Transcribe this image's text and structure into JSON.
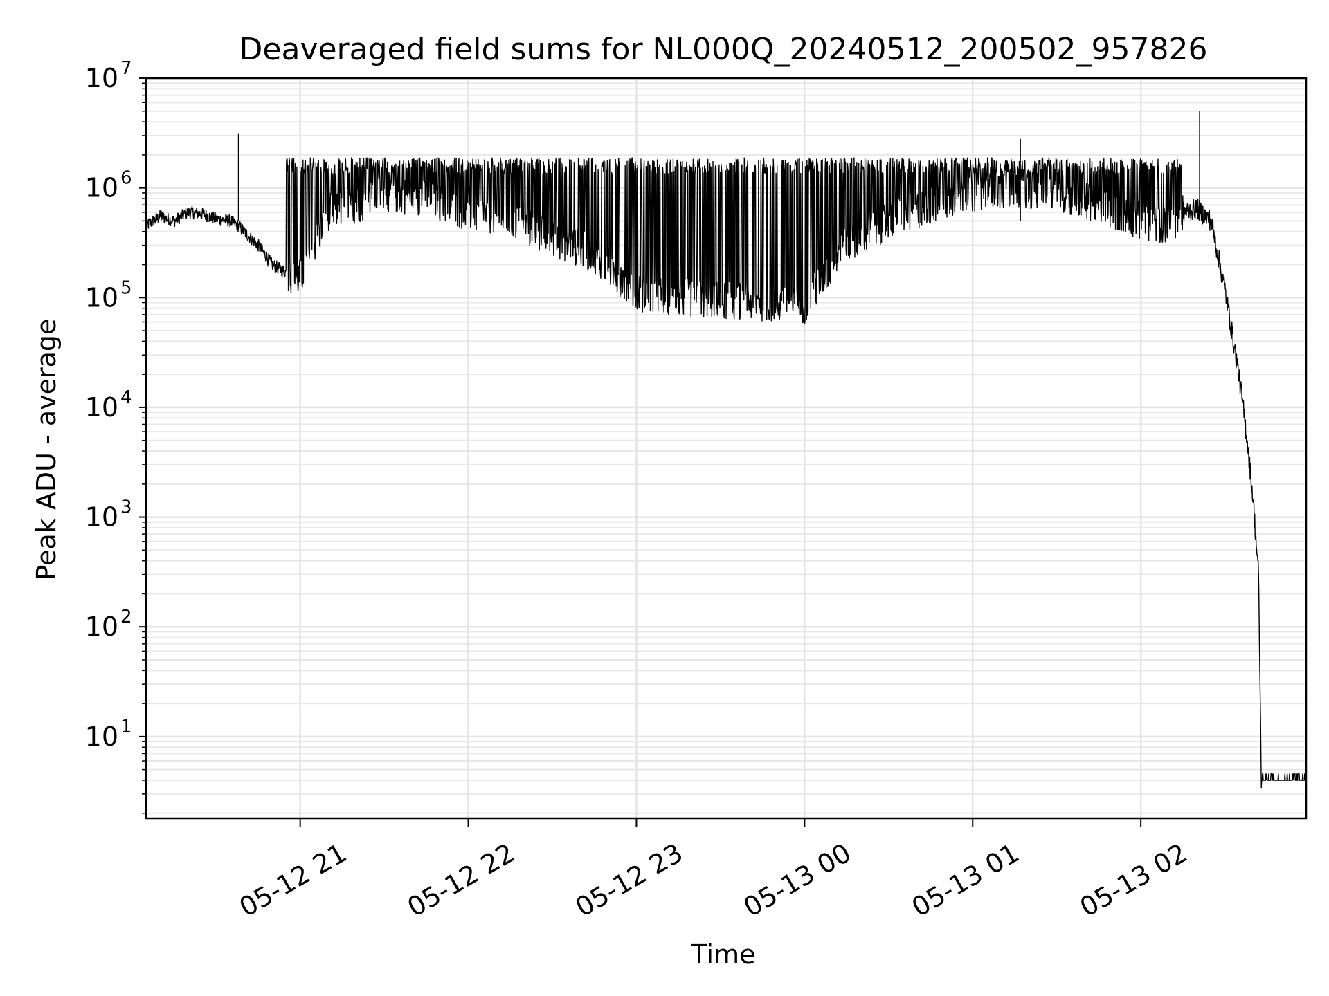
{
  "chart_data": {
    "type": "line",
    "title": "Deaveraged field sums for NL000Q_20240512_200502_957826",
    "xlabel": "Time",
    "ylabel": "Peak ADU - average",
    "yscale": "log",
    "ylim": [
      1.8,
      10000000
    ],
    "xlim": [
      "2024-05-12 20:05",
      "2024-05-13 02:59"
    ],
    "grid": true,
    "x_ticks": [
      {
        "t": "2024-05-12 21:00",
        "label": "05-12 21"
      },
      {
        "t": "2024-05-12 22:00",
        "label": "05-12 22"
      },
      {
        "t": "2024-05-12 23:00",
        "label": "05-12 23"
      },
      {
        "t": "2024-05-13 00:00",
        "label": "05-13 00"
      },
      {
        "t": "2024-05-13 01:00",
        "label": "05-13 01"
      },
      {
        "t": "2024-05-13 02:00",
        "label": "05-13 02"
      }
    ],
    "y_ticks": [
      {
        "value": 10,
        "base": "10",
        "exp": "1"
      },
      {
        "value": 100,
        "base": "10",
        "exp": "2"
      },
      {
        "value": 1000,
        "base": "10",
        "exp": "3"
      },
      {
        "value": 10000,
        "base": "10",
        "exp": "4"
      },
      {
        "value": 100000,
        "base": "10",
        "exp": "5"
      },
      {
        "value": 1000000,
        "base": "10",
        "exp": "6"
      },
      {
        "value": 10000000,
        "base": "10",
        "exp": "7"
      }
    ],
    "line_color": "#000000",
    "series": [
      {
        "x": [
          "2024-05-12 20:05",
          "2024-05-12 20:10",
          "2024-05-12 20:15",
          "2024-05-12 20:20",
          "2024-05-12 20:25",
          "2024-05-12 20:30",
          "2024-05-12 20:35",
          "2024-05-12 20:38",
          "2024-05-12 20:40",
          "2024-05-12 20:45",
          "2024-05-12 20:50",
          "2024-05-12 20:55",
          "2024-05-12 21:00",
          "2024-05-12 21:10",
          "2024-05-12 21:20",
          "2024-05-12 21:30",
          "2024-05-12 21:45",
          "2024-05-12 22:00",
          "2024-05-12 22:15",
          "2024-05-12 22:30",
          "2024-05-12 22:45",
          "2024-05-12 23:00",
          "2024-05-12 23:15",
          "2024-05-12 23:30",
          "2024-05-12 23:45",
          "2024-05-13 00:00",
          "2024-05-13 00:15",
          "2024-05-13 00:30",
          "2024-05-13 00:45",
          "2024-05-13 01:00",
          "2024-05-13 01:15",
          "2024-05-13 01:30",
          "2024-05-13 01:45",
          "2024-05-13 02:00",
          "2024-05-13 02:10",
          "2024-05-13 02:15",
          "2024-05-13 02:20",
          "2024-05-13 02:25",
          "2024-05-13 02:30",
          "2024-05-13 02:35",
          "2024-05-13 02:38",
          "2024-05-13 02:40",
          "2024-05-13 02:42",
          "2024-05-13 02:43",
          "2024-05-13 02:50",
          "2024-05-13 02:59"
        ],
        "y": [
          450000,
          550000,
          500000,
          600000,
          580000,
          520000,
          500000,
          450000,
          400000,
          300000,
          200000,
          170000,
          150000,
          600000,
          700000,
          900000,
          800000,
          600000,
          500000,
          350000,
          250000,
          110000,
          100000,
          95000,
          90000,
          85000,
          300000,
          500000,
          700000,
          900000,
          1000000,
          900000,
          700000,
          500000,
          450000,
          600000,
          650000,
          500000,
          120000,
          20000,
          5000,
          1500,
          300,
          4,
          4,
          4
        ]
      }
    ]
  }
}
